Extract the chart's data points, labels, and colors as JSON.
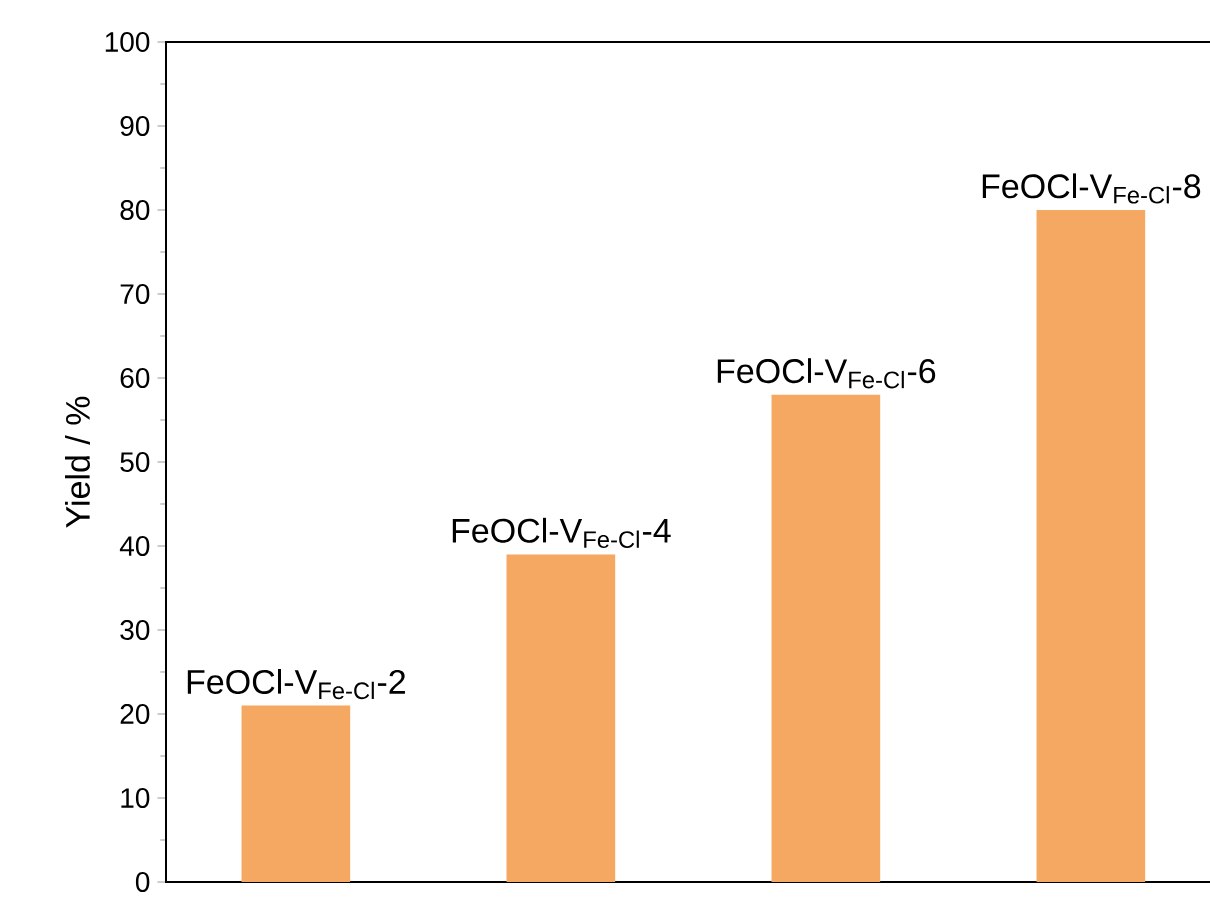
{
  "chart_data": {
    "type": "bar",
    "ylabel": "Yield / %",
    "categories": [
      "FeOCl-V$_{Fe-Cl}$-2",
      "FeOCl-V$_{Fe-Cl}$-4",
      "FeOCl-V$_{Fe-Cl}$-6",
      "FeOCl-V$_{Fe-Cl}$-8"
    ],
    "values": [
      21,
      39,
      58,
      80
    ],
    "color": "#f4a862",
    "ylim": [
      0,
      100
    ],
    "yticks": [
      0,
      10,
      20,
      30,
      40,
      50,
      60,
      70,
      80,
      90,
      100
    ],
    "grid": false
  }
}
